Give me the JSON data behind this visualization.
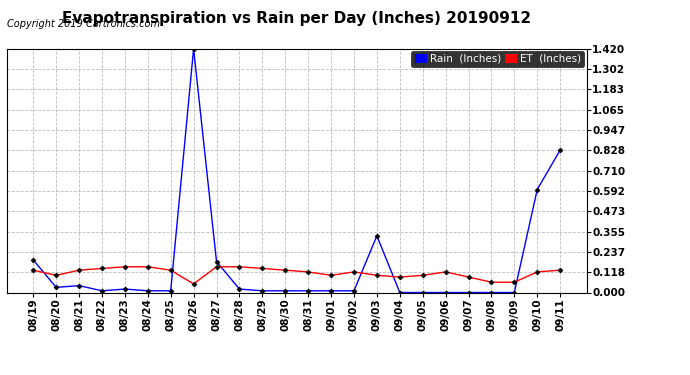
{
  "title": "Evapotranspiration vs Rain per Day (Inches) 20190912",
  "copyright": "Copyright 2019 Cartronics.com",
  "labels": [
    "08/19",
    "08/20",
    "08/21",
    "08/22",
    "08/23",
    "08/24",
    "08/25",
    "08/26",
    "08/27",
    "08/28",
    "08/29",
    "08/30",
    "08/31",
    "09/01",
    "09/02",
    "09/03",
    "09/04",
    "09/05",
    "09/06",
    "09/07",
    "09/08",
    "09/09",
    "09/10",
    "09/11"
  ],
  "rain": [
    0.19,
    0.03,
    0.04,
    0.01,
    0.02,
    0.01,
    0.01,
    1.42,
    0.18,
    0.02,
    0.01,
    0.01,
    0.01,
    0.01,
    0.01,
    0.33,
    0.0,
    0.0,
    0.0,
    0.0,
    0.0,
    0.0,
    0.6,
    0.83
  ],
  "et": [
    0.13,
    0.1,
    0.13,
    0.14,
    0.15,
    0.15,
    0.13,
    0.05,
    0.15,
    0.15,
    0.14,
    0.13,
    0.12,
    0.1,
    0.12,
    0.1,
    0.09,
    0.1,
    0.12,
    0.09,
    0.06,
    0.06,
    0.12,
    0.13
  ],
  "ylim_min": 0.0,
  "ylim_max": 1.42,
  "yticks": [
    0.0,
    0.118,
    0.237,
    0.355,
    0.473,
    0.592,
    0.71,
    0.828,
    0.947,
    1.065,
    1.183,
    1.302,
    1.42
  ],
  "rain_color": "#0000ff",
  "et_color": "#ff0000",
  "background_color": "#ffffff",
  "grid_color": "#bbbbbb",
  "title_fontsize": 11,
  "copyright_fontsize": 7,
  "tick_fontsize": 7.5,
  "legend_fontsize": 7.5
}
